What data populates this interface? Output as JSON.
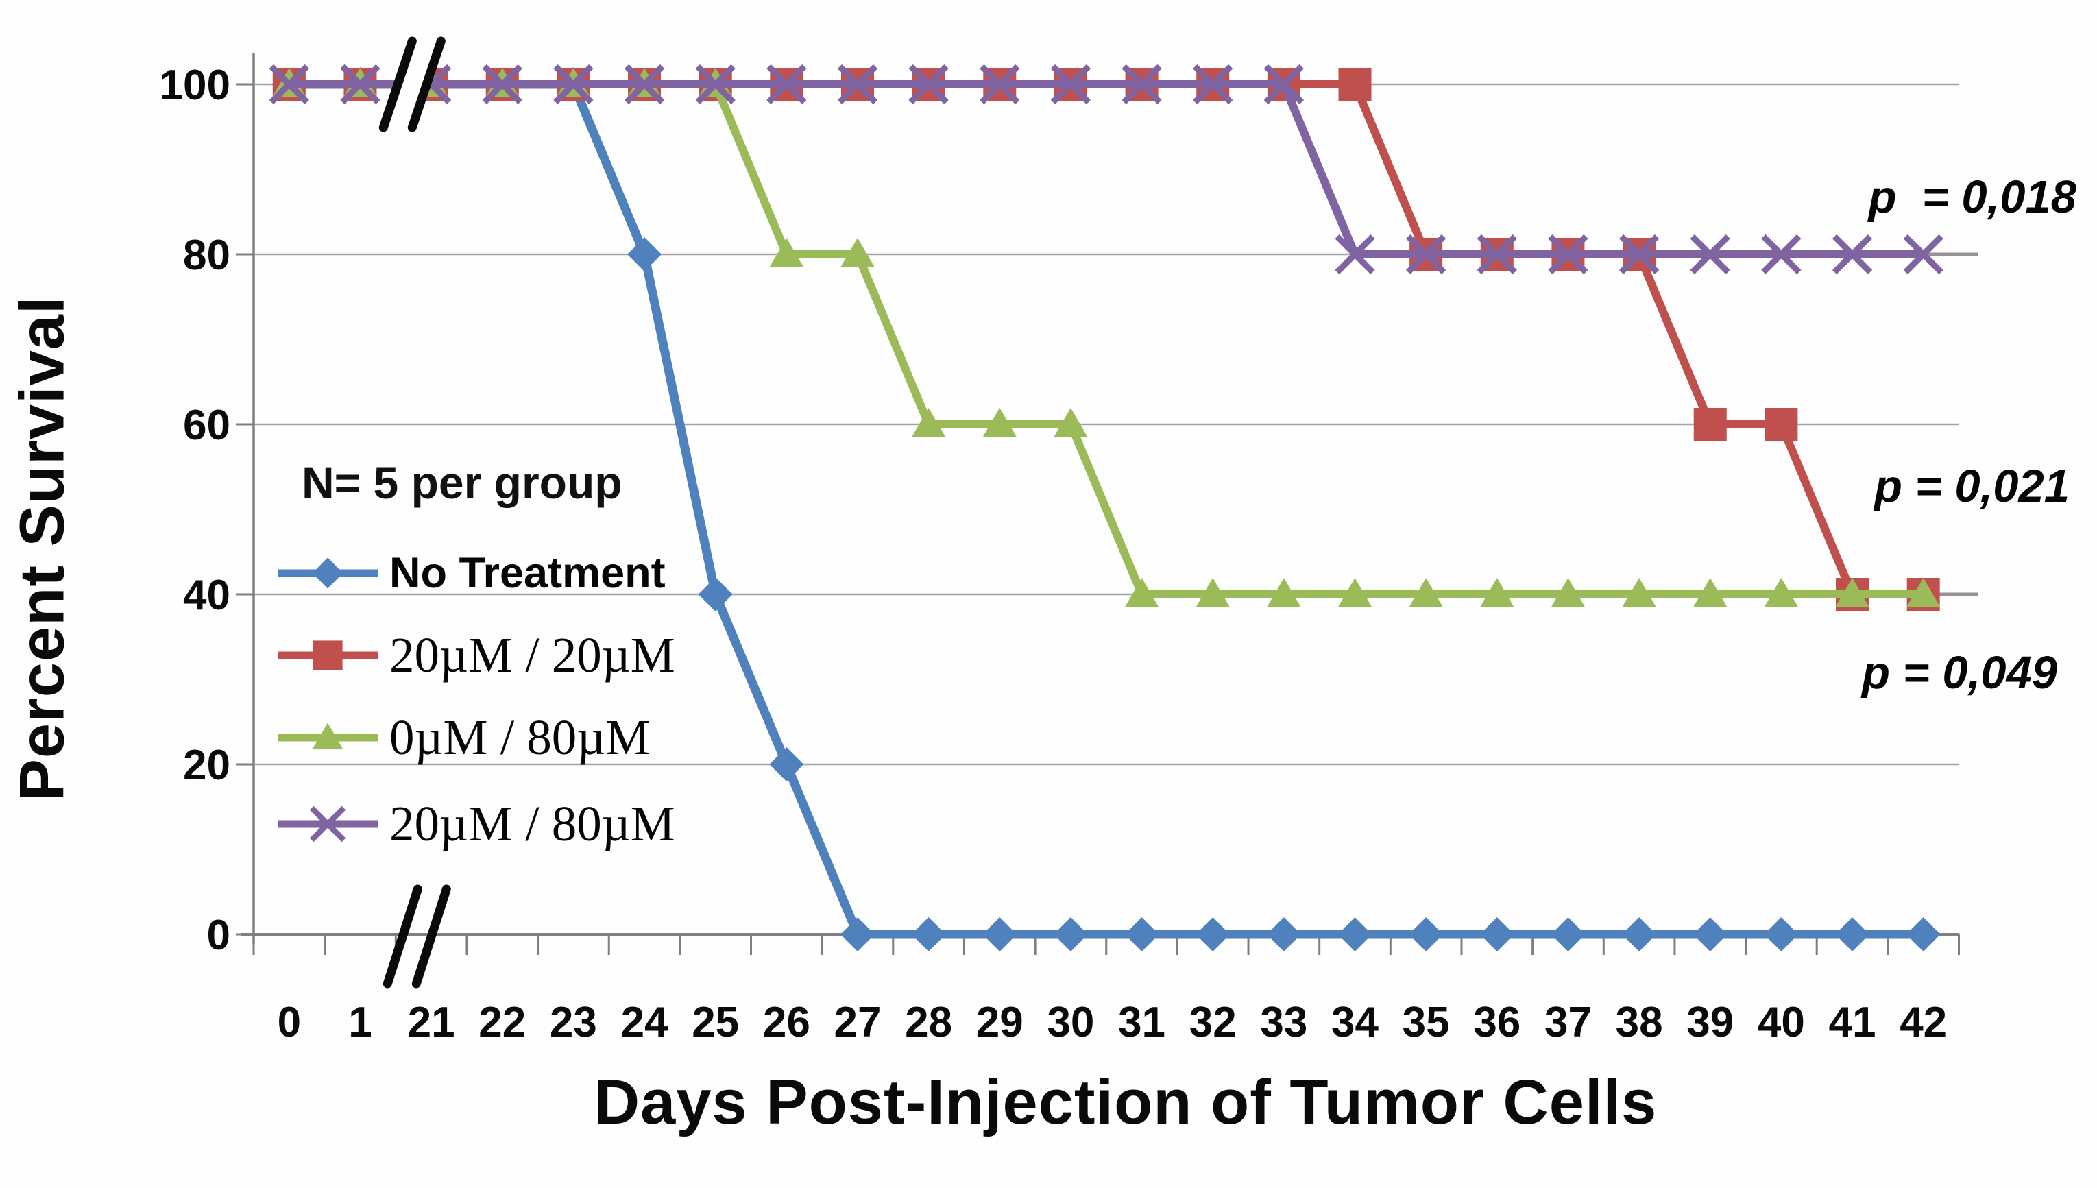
{
  "chart_data": {
    "type": "line",
    "title": "",
    "xlabel": "Days Post-Injection of Tumor Cells",
    "ylabel": "Percent Survival",
    "x_categories": [
      "0",
      "1",
      "21",
      "22",
      "23",
      "24",
      "25",
      "26",
      "27",
      "28",
      "29",
      "30",
      "31",
      "32",
      "33",
      "34",
      "35",
      "36",
      "37",
      "38",
      "39",
      "40",
      "41",
      "42"
    ],
    "x_axis_break_between": [
      "1",
      "21"
    ],
    "ylim": [
      0,
      100
    ],
    "yticks": [
      0,
      20,
      40,
      60,
      80,
      100
    ],
    "grid": "horizontal",
    "legend_position": "inside-left",
    "legend_note": "N= 5 per group",
    "series": [
      {
        "name": "No Treatment",
        "marker": "diamond",
        "color": "#4f81bd",
        "values": [
          100,
          100,
          100,
          100,
          100,
          80,
          40,
          20,
          0,
          0,
          0,
          0,
          0,
          0,
          0,
          0,
          0,
          0,
          0,
          0,
          0,
          0,
          0,
          0
        ]
      },
      {
        "name": "20µM / 20µM",
        "marker": "square",
        "color": "#c0504d",
        "values": [
          100,
          100,
          100,
          100,
          100,
          100,
          100,
          100,
          100,
          100,
          100,
          100,
          100,
          100,
          100,
          100,
          80,
          80,
          80,
          80,
          60,
          60,
          40,
          40
        ]
      },
      {
        "name": "0µM / 80µM",
        "marker": "triangle",
        "color": "#9bbb59",
        "values": [
          100,
          100,
          100,
          100,
          100,
          100,
          100,
          80,
          80,
          60,
          60,
          60,
          40,
          40,
          40,
          40,
          40,
          40,
          40,
          40,
          40,
          40,
          40,
          40
        ]
      },
      {
        "name": "20µM / 80µM",
        "marker": "x",
        "color": "#8064a2",
        "values": [
          100,
          100,
          100,
          100,
          100,
          100,
          100,
          100,
          100,
          100,
          100,
          100,
          100,
          100,
          100,
          80,
          80,
          80,
          80,
          80,
          80,
          80,
          80,
          80
        ]
      }
    ],
    "annotations": [
      {
        "text": "p  = 0,018",
        "refers_to": "20µM / 80µM"
      },
      {
        "text": "p = 0,021",
        "refers_to": "20µM / 20µM"
      },
      {
        "text": "p = 0,049",
        "refers_to": "0µM / 80µM"
      }
    ]
  },
  "colors": {
    "gridline": "#a3a3a3",
    "axis": "#7f7f7f",
    "tick_text": "#0a0a0a",
    "break_mark": "#0a0a0a"
  }
}
